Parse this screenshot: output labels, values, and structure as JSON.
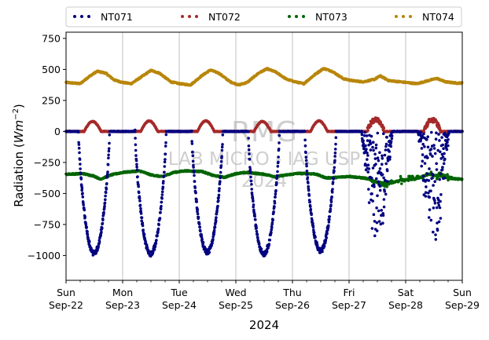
{
  "chart_data": {
    "type": "scatter",
    "title": "",
    "xlabel": "2024",
    "ylabel_main": "Radiation (",
    "ylabel_unit": "Wm",
    "ylabel_exp": "−2",
    "ylabel_close": ")",
    "ylim": [
      -1200,
      800
    ],
    "xlim": [
      "2024-09-22",
      "2024-09-29"
    ],
    "yticks": [
      750,
      500,
      250,
      0,
      -250,
      -500,
      -750,
      -1000
    ],
    "ytick_labels": [
      "750",
      "500",
      "250",
      "0",
      "−250",
      "−500",
      "−750",
      "−1000"
    ],
    "xtick_days": [
      "Sun",
      "Mon",
      "Tue",
      "Wed",
      "Thu",
      "Fri",
      "Sat",
      "Sun"
    ],
    "xtick_dates": [
      "Sep-22",
      "Sep-23",
      "Sep-24",
      "Sep-25",
      "Sep-26",
      "Sep-27",
      "Sep-28",
      "Sep-29"
    ],
    "grid": "vertical",
    "legend": "top, above plot",
    "watermark": [
      "RMG",
      "LAB MICRO - IAG USP",
      "2024"
    ],
    "series": [
      {
        "name": "NT071",
        "color": "#000080",
        "night_value": 0,
        "day_minimums": [
          -980,
          -985,
          -970,
          -985,
          -960,
          -900,
          -920
        ],
        "noisy_days": [
          5,
          6
        ]
      },
      {
        "name": "NT072",
        "color": "#a52a2a",
        "night_value": 0,
        "day_peaks": [
          80,
          85,
          85,
          80,
          85,
          90,
          85
        ]
      },
      {
        "name": "NT073",
        "color": "#006400",
        "values": [
          [
            0.0,
            -345
          ],
          [
            0.3,
            -340
          ],
          [
            0.5,
            -360
          ],
          [
            0.6,
            -385
          ],
          [
            0.8,
            -350
          ],
          [
            1.0,
            -330
          ],
          [
            1.3,
            -318
          ],
          [
            1.5,
            -350
          ],
          [
            1.7,
            -365
          ],
          [
            1.9,
            -330
          ],
          [
            2.1,
            -318
          ],
          [
            2.4,
            -322
          ],
          [
            2.6,
            -355
          ],
          [
            2.8,
            -370
          ],
          [
            3.0,
            -340
          ],
          [
            3.2,
            -330
          ],
          [
            3.5,
            -345
          ],
          [
            3.7,
            -365
          ],
          [
            3.9,
            -350
          ],
          [
            4.1,
            -338
          ],
          [
            4.4,
            -342
          ],
          [
            4.6,
            -375
          ],
          [
            4.8,
            -370
          ],
          [
            5.0,
            -362
          ],
          [
            5.3,
            -378
          ],
          [
            5.5,
            -410
          ],
          [
            5.7,
            -420
          ],
          [
            5.9,
            -395
          ],
          [
            6.2,
            -380
          ],
          [
            6.4,
            -345
          ],
          [
            6.6,
            -360
          ],
          [
            6.8,
            -380
          ],
          [
            7.0,
            -385
          ]
        ]
      },
      {
        "name": "NT074",
        "color": "#b8860b",
        "values": [
          [
            0.0,
            395
          ],
          [
            0.25,
            385
          ],
          [
            0.4,
            440
          ],
          [
            0.55,
            485
          ],
          [
            0.7,
            470
          ],
          [
            0.85,
            415
          ],
          [
            1.0,
            395
          ],
          [
            1.15,
            385
          ],
          [
            1.3,
            430
          ],
          [
            1.5,
            492
          ],
          [
            1.65,
            470
          ],
          [
            1.85,
            400
          ],
          [
            2.0,
            385
          ],
          [
            2.2,
            375
          ],
          [
            2.4,
            450
          ],
          [
            2.55,
            495
          ],
          [
            2.7,
            470
          ],
          [
            2.9,
            400
          ],
          [
            3.05,
            375
          ],
          [
            3.2,
            395
          ],
          [
            3.4,
            470
          ],
          [
            3.55,
            505
          ],
          [
            3.7,
            480
          ],
          [
            3.9,
            420
          ],
          [
            4.05,
            400
          ],
          [
            4.2,
            385
          ],
          [
            4.4,
            460
          ],
          [
            4.55,
            508
          ],
          [
            4.7,
            485
          ],
          [
            4.9,
            425
          ],
          [
            5.05,
            410
          ],
          [
            5.25,
            400
          ],
          [
            5.45,
            420
          ],
          [
            5.55,
            448
          ],
          [
            5.7,
            410
          ],
          [
            5.9,
            400
          ],
          [
            6.2,
            385
          ],
          [
            6.4,
            410
          ],
          [
            6.55,
            428
          ],
          [
            6.7,
            400
          ],
          [
            6.9,
            390
          ],
          [
            7.0,
            390
          ]
        ]
      }
    ]
  }
}
